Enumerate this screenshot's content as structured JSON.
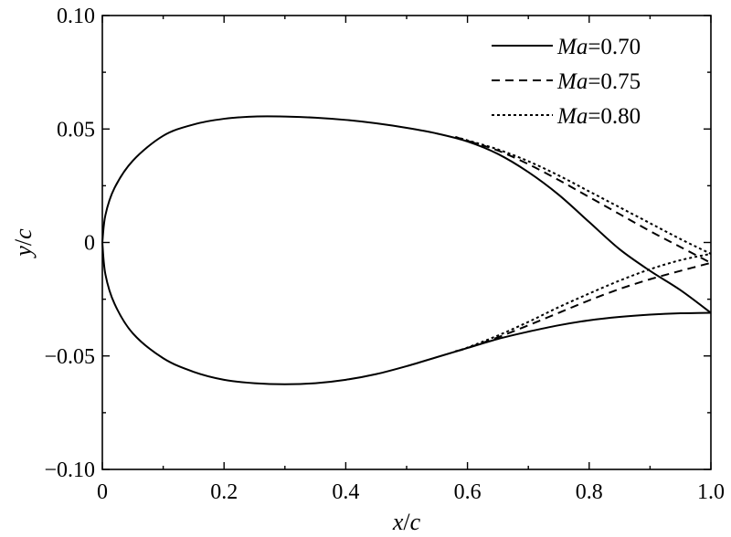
{
  "chart_data": {
    "type": "line",
    "title": "",
    "xlabel": {
      "var": "x",
      "slash": "/",
      "den": "c"
    },
    "ylabel": {
      "var": "y",
      "slash": "/",
      "den": "c"
    },
    "xlim": [
      0,
      1.0
    ],
    "ylim": [
      -0.1,
      0.1
    ],
    "xticks": [
      0,
      0.2,
      0.4,
      0.6,
      0.8,
      1.0
    ],
    "xtick_labels": [
      "0",
      "0.2",
      "0.4",
      "0.6",
      "0.8",
      "1.0"
    ],
    "yticks": [
      -0.1,
      -0.05,
      0,
      0.05,
      0.1
    ],
    "ytick_labels": [
      "−0.10",
      "−0.05",
      "0",
      "0.05",
      "0.10"
    ],
    "grid": false,
    "legend_position": "top-right",
    "series": [
      {
        "name": "Ma=0.70",
        "name_var": "Ma",
        "name_val": "=0.70",
        "dash": "solid",
        "upper": [
          [
            0,
            0
          ],
          [
            0.005,
            0.012
          ],
          [
            0.02,
            0.024
          ],
          [
            0.05,
            0.036
          ],
          [
            0.1,
            0.047
          ],
          [
            0.15,
            0.052
          ],
          [
            0.2,
            0.0545
          ],
          [
            0.25,
            0.0555
          ],
          [
            0.3,
            0.0555
          ],
          [
            0.35,
            0.055
          ],
          [
            0.4,
            0.054
          ],
          [
            0.45,
            0.0525
          ],
          [
            0.5,
            0.0505
          ],
          [
            0.55,
            0.048
          ],
          [
            0.6,
            0.0445
          ],
          [
            0.65,
            0.039
          ],
          [
            0.7,
            0.031
          ],
          [
            0.75,
            0.021
          ],
          [
            0.8,
            0.009
          ],
          [
            0.85,
            -0.003
          ],
          [
            0.9,
            -0.0125
          ],
          [
            0.95,
            -0.021
          ],
          [
            1.0,
            -0.031
          ]
        ],
        "lower": [
          [
            0,
            0
          ],
          [
            0.005,
            -0.014
          ],
          [
            0.02,
            -0.027
          ],
          [
            0.05,
            -0.04
          ],
          [
            0.1,
            -0.051
          ],
          [
            0.15,
            -0.057
          ],
          [
            0.2,
            -0.0605
          ],
          [
            0.25,
            -0.062
          ],
          [
            0.3,
            -0.0625
          ],
          [
            0.35,
            -0.062
          ],
          [
            0.4,
            -0.0605
          ],
          [
            0.45,
            -0.058
          ],
          [
            0.5,
            -0.0545
          ],
          [
            0.55,
            -0.0505
          ],
          [
            0.6,
            -0.0465
          ],
          [
            0.65,
            -0.0425
          ],
          [
            0.7,
            -0.0393
          ],
          [
            0.75,
            -0.0365
          ],
          [
            0.8,
            -0.0343
          ],
          [
            0.85,
            -0.0328
          ],
          [
            0.9,
            -0.0318
          ],
          [
            0.95,
            -0.0312
          ],
          [
            1.0,
            -0.031
          ]
        ]
      },
      {
        "name": "Ma=0.75",
        "name_var": "Ma",
        "name_val": "=0.75",
        "dash": "dashed",
        "upper": [
          [
            0.58,
            0.0465
          ],
          [
            0.6,
            0.0448
          ],
          [
            0.65,
            0.0405
          ],
          [
            0.7,
            0.0345
          ],
          [
            0.75,
            0.0275
          ],
          [
            0.8,
            0.02
          ],
          [
            0.85,
            0.0125
          ],
          [
            0.9,
            0.005
          ],
          [
            0.95,
            -0.002
          ],
          [
            1.0,
            -0.009
          ]
        ],
        "lower": [
          [
            0.58,
            -0.048
          ],
          [
            0.6,
            -0.0465
          ],
          [
            0.65,
            -0.0418
          ],
          [
            0.7,
            -0.0365
          ],
          [
            0.75,
            -0.031
          ],
          [
            0.8,
            -0.0255
          ],
          [
            0.85,
            -0.0205
          ],
          [
            0.9,
            -0.0162
          ],
          [
            0.95,
            -0.0125
          ],
          [
            1.0,
            -0.009
          ]
        ]
      },
      {
        "name": "Ma=0.80",
        "name_var": "Ma",
        "name_val": "=0.80",
        "dash": "dotted",
        "upper": [
          [
            0.58,
            0.0465
          ],
          [
            0.6,
            0.045
          ],
          [
            0.65,
            0.041
          ],
          [
            0.7,
            0.0358
          ],
          [
            0.75,
            0.0295
          ],
          [
            0.8,
            0.0225
          ],
          [
            0.85,
            0.0155
          ],
          [
            0.9,
            0.0085
          ],
          [
            0.95,
            0.0015
          ],
          [
            1.0,
            -0.005
          ]
        ],
        "lower": [
          [
            0.58,
            -0.048
          ],
          [
            0.6,
            -0.0463
          ],
          [
            0.65,
            -0.041
          ],
          [
            0.7,
            -0.035
          ],
          [
            0.75,
            -0.0285
          ],
          [
            0.8,
            -0.0225
          ],
          [
            0.85,
            -0.0168
          ],
          [
            0.9,
            -0.0118
          ],
          [
            0.95,
            -0.0078
          ],
          [
            1.0,
            -0.005
          ]
        ]
      }
    ]
  }
}
